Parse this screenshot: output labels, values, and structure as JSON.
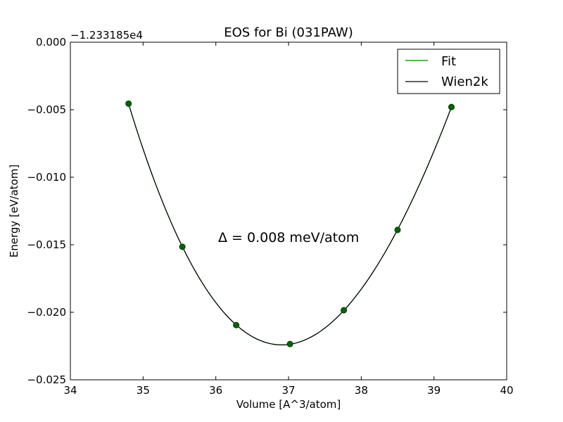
{
  "chart_data": {
    "type": "line",
    "title": "EOS for Bi (031PAW)",
    "xlabel": "Volume [A^3/atom]",
    "ylabel": "Energy [eV/atom]",
    "y_offset_label": "−1.233185e4",
    "xlim": [
      34,
      40
    ],
    "ylim": [
      -0.025,
      0.0
    ],
    "x_ticks": [
      34,
      35,
      36,
      37,
      38,
      39,
      40
    ],
    "x_tick_labels": [
      "34",
      "35",
      "36",
      "37",
      "38",
      "39",
      "40"
    ],
    "y_ticks": [
      0.0,
      -0.005,
      -0.01,
      -0.015,
      -0.02,
      -0.025
    ],
    "y_tick_labels": [
      "0.000",
      "−0.005",
      "−0.010",
      "−0.015",
      "−0.020",
      "−0.025"
    ],
    "grid": false,
    "legend_position": "top-right",
    "annotation": "Δ = 0.008 meV/atom",
    "colors": {
      "fit": "#008000",
      "wien2k": "#000000",
      "marker_fill": "#006400",
      "marker_edge": "#003300"
    },
    "series": [
      {
        "name": "Fit",
        "kind": "line",
        "x_range": [
          34.8,
          39.24
        ]
      },
      {
        "name": "Wien2k",
        "kind": "line",
        "x_range": [
          34.8,
          39.24
        ]
      }
    ],
    "points": {
      "x": [
        34.8,
        35.54,
        36.28,
        37.02,
        37.76,
        38.5,
        39.24
      ],
      "y": [
        -0.00455,
        -0.01515,
        -0.02095,
        -0.02235,
        -0.01985,
        -0.0139,
        -0.0048
      ]
    }
  }
}
